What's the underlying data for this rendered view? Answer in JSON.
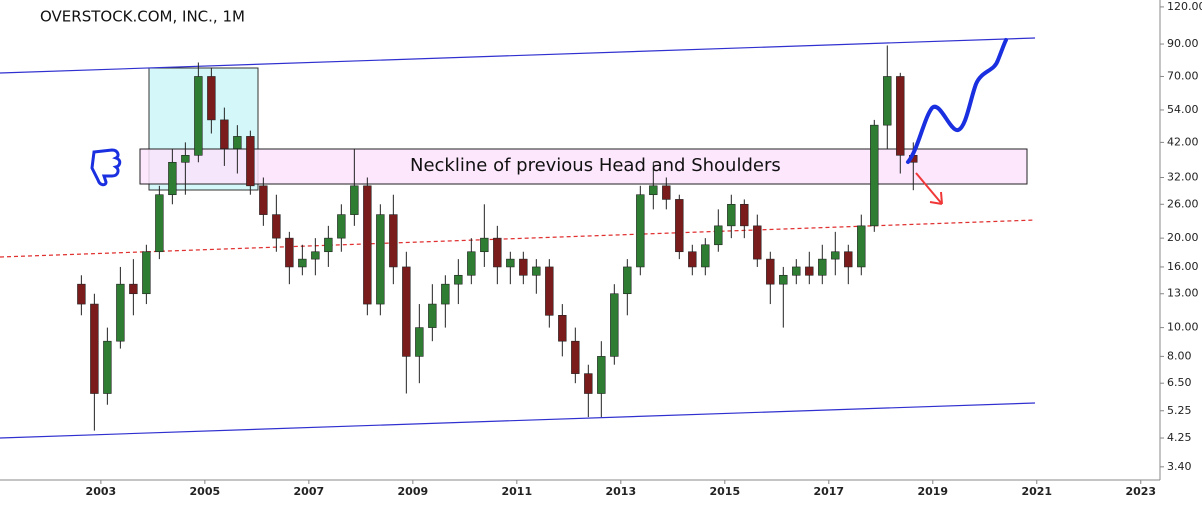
{
  "chart_data": {
    "type": "candlestick",
    "title": "OVERSTOCK.COM, INC., 1M",
    "annotation": "Neckline of previous Head and Shoulders",
    "log_y": true,
    "up_color": "#2e7d32",
    "down_color": "#7b1c1c",
    "xlim": [
      2001.06,
      2023.37
    ],
    "xticks": [
      2003,
      2005,
      2007,
      2009,
      2011,
      2013,
      2015,
      2017,
      2019,
      2021,
      2023
    ],
    "ylim": [
      3.07,
      126.6
    ],
    "yticks": [
      {
        "value": 120,
        "label": "120.00"
      },
      {
        "value": 90,
        "label": "90.00"
      },
      {
        "value": 70,
        "label": "70.00"
      },
      {
        "value": 54,
        "label": "54.00"
      },
      {
        "value": 42,
        "label": "42.00"
      },
      {
        "value": 32,
        "label": "32.00"
      },
      {
        "value": 26,
        "label": "26.00"
      },
      {
        "value": 20,
        "label": "20.00"
      },
      {
        "value": 16,
        "label": "16.00"
      },
      {
        "value": 13,
        "label": "13.00"
      },
      {
        "value": 10,
        "label": "10.00"
      },
      {
        "value": 8,
        "label": "8.00"
      },
      {
        "value": 6.5,
        "label": "6.50"
      },
      {
        "value": 5.25,
        "label": "5.25"
      },
      {
        "value": 4.25,
        "label": "4.25"
      },
      {
        "value": 3.4,
        "label": "3.40"
      }
    ],
    "x": [
      2002.625,
      2002.875,
      2003.125,
      2003.375,
      2003.625,
      2003.875,
      2004.125,
      2004.375,
      2004.625,
      2004.875,
      2005.125,
      2005.375,
      2005.625,
      2005.875,
      2006.125,
      2006.375,
      2006.625,
      2006.875,
      2007.125,
      2007.375,
      2007.625,
      2007.875,
      2008.125,
      2008.375,
      2008.625,
      2008.875,
      2009.125,
      2009.375,
      2009.625,
      2009.875,
      2010.125,
      2010.375,
      2010.625,
      2010.875,
      2011.125,
      2011.375,
      2011.625,
      2011.875,
      2012.125,
      2012.375,
      2012.625,
      2012.875,
      2013.125,
      2013.375,
      2013.625,
      2013.875,
      2014.125,
      2014.375,
      2014.625,
      2014.875,
      2015.125,
      2015.375,
      2015.625,
      2015.875,
      2016.125,
      2016.375,
      2016.625,
      2016.875,
      2017.125,
      2017.375,
      2017.625,
      2017.875,
      2018.125,
      2018.375,
      2018.625
    ],
    "open": [
      14,
      12,
      6,
      9,
      14,
      13,
      18,
      28,
      36,
      38,
      70,
      50,
      40,
      44,
      30,
      24,
      20,
      16,
      17,
      18,
      20,
      24,
      30,
      12,
      24,
      16,
      8,
      10,
      12,
      14,
      15,
      18,
      20,
      16,
      17,
      15,
      16,
      11,
      9,
      7,
      6,
      8,
      13,
      16,
      28,
      30,
      27,
      18,
      16,
      19,
      22,
      26,
      22,
      17,
      14,
      15,
      16,
      15,
      17,
      18,
      16,
      22,
      48,
      70,
      38
    ],
    "high": [
      15,
      13,
      10,
      16,
      17,
      19,
      30,
      40,
      42,
      78,
      75,
      55,
      48,
      46,
      32,
      28,
      21,
      19,
      20,
      22,
      26,
      40,
      32,
      26,
      28,
      18,
      12,
      14,
      15,
      17,
      20,
      26,
      22,
      18,
      18,
      17,
      17,
      12,
      10,
      7.5,
      9,
      14,
      17,
      30,
      36,
      32,
      28,
      19,
      20,
      25,
      28,
      27,
      24,
      18,
      16,
      17,
      18,
      19,
      21,
      19,
      24,
      50,
      89,
      72,
      42
    ],
    "low": [
      11,
      4.5,
      5.5,
      8.5,
      11,
      12,
      17,
      26,
      28,
      36,
      45,
      35,
      33,
      28,
      22,
      18,
      14,
      15,
      15,
      16,
      18,
      22,
      11,
      11,
      14,
      6,
      6.5,
      9,
      10,
      12,
      14,
      16,
      14,
      14,
      14,
      13,
      10,
      8,
      6.5,
      5,
      5,
      7.5,
      11,
      15,
      25,
      25,
      17,
      15,
      15,
      18,
      20,
      20,
      16,
      12,
      10,
      14,
      14,
      14,
      15,
      14,
      15,
      21,
      40,
      33,
      29
    ],
    "close": [
      12,
      6,
      9,
      14,
      13,
      18,
      28,
      36,
      38,
      70,
      50,
      40,
      44,
      30,
      24,
      20,
      16,
      17,
      18,
      20,
      24,
      30,
      12,
      24,
      16,
      8,
      10,
      12,
      14,
      15,
      18,
      20,
      16,
      17,
      15,
      16,
      11,
      9,
      7,
      6,
      8,
      13,
      16,
      28,
      30,
      27,
      18,
      16,
      19,
      22,
      26,
      22,
      17,
      14,
      15,
      16,
      15,
      17,
      18,
      16,
      22,
      48,
      70,
      38,
      36
    ]
  }
}
